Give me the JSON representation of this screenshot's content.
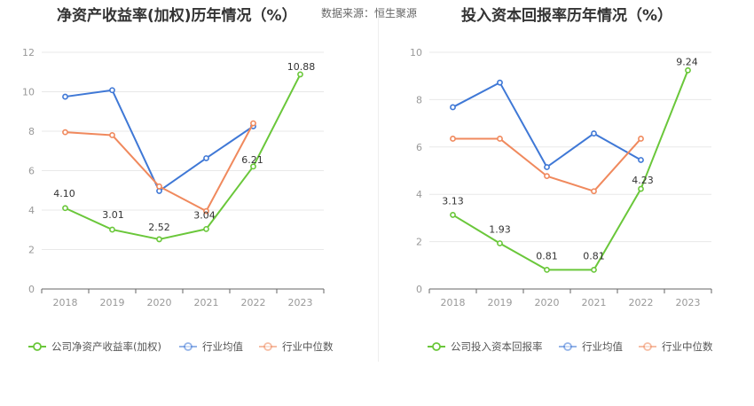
{
  "source": "数据来源：恒生聚源",
  "chart_data": [
    {
      "type": "line",
      "title": "净资产收益率(加权)历年情况（%）",
      "categories": [
        "2018",
        "2019",
        "2020",
        "2021",
        "2022",
        "2023"
      ],
      "ylim": [
        0,
        12
      ],
      "yticks": [
        0,
        2,
        4,
        6,
        8,
        10,
        12
      ],
      "grid": true,
      "legend": "bottom",
      "series": [
        {
          "name": "公司净资产收益率(加权)",
          "color": "#6ac73a",
          "values": [
            4.1,
            3.01,
            2.52,
            3.04,
            6.21,
            10.88
          ],
          "labels": [
            "4.10",
            "3.01",
            "2.52",
            "3.04",
            "6.21",
            "10.88"
          ]
        },
        {
          "name": "行业均值",
          "color": "#3f78d6",
          "values": [
            9.75,
            10.08,
            4.97,
            6.63,
            8.25,
            null
          ]
        },
        {
          "name": "行业中位数",
          "color": "#f0895d",
          "values": [
            7.95,
            7.8,
            5.2,
            3.95,
            8.4,
            null
          ]
        }
      ]
    },
    {
      "type": "line",
      "title": "投入资本回报率历年情况（%）",
      "categories": [
        "2018",
        "2019",
        "2020",
        "2021",
        "2022",
        "2023"
      ],
      "ylim": [
        0,
        10
      ],
      "yticks": [
        0,
        2,
        4,
        6,
        8,
        10
      ],
      "grid": true,
      "legend": "bottom",
      "series": [
        {
          "name": "公司投入资本回报率",
          "color": "#6ac73a",
          "values": [
            3.13,
            1.93,
            0.81,
            0.81,
            4.23,
            9.24
          ],
          "labels": [
            "3.13",
            "1.93",
            "0.81",
            "0.81",
            "4.23",
            "9.24"
          ]
        },
        {
          "name": "行业均值",
          "color": "#3f78d6",
          "values": [
            7.68,
            8.72,
            5.15,
            6.57,
            5.45,
            null
          ]
        },
        {
          "name": "行业中位数",
          "color": "#f0895d",
          "values": [
            6.35,
            6.35,
            4.77,
            4.13,
            6.35,
            null
          ]
        }
      ]
    }
  ]
}
